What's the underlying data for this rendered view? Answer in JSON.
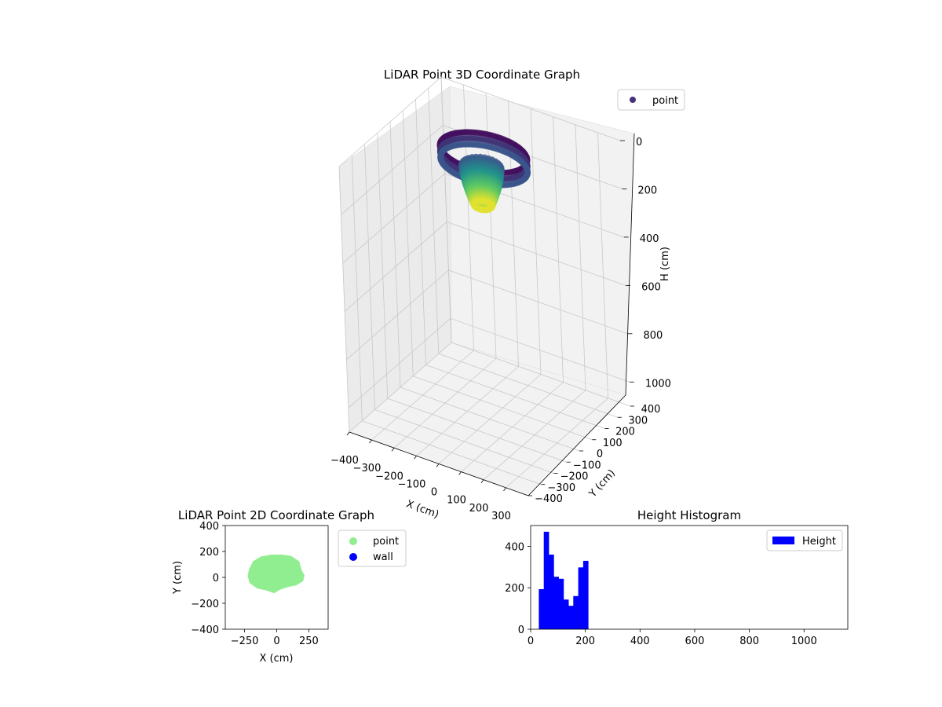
{
  "chart_data": [
    {
      "type": "scatter",
      "projection": "3d",
      "title": "LiDAR Point 3D Coordinate Graph",
      "xlabel": "X (cm)",
      "ylabel": "Y (cm)",
      "zlabel": "H (cm)",
      "xlim": [
        -400,
        400
      ],
      "ylim": [
        -400,
        400
      ],
      "zlim": [
        1100,
        0
      ],
      "x_ticks": [
        -400,
        -300,
        -200,
        -100,
        0,
        100,
        200,
        300
      ],
      "y_ticks": [
        -400,
        -300,
        -200,
        -100,
        0,
        100,
        200,
        300,
        400
      ],
      "z_ticks": [
        0,
        200,
        400,
        600,
        800,
        1000
      ],
      "x_tick_labels": [
        "−400",
        "−300",
        "−200",
        "−100",
        "0",
        "100",
        "200",
        "300"
      ],
      "y_tick_labels": [
        "−400",
        "−300",
        "−200",
        "−100",
        "0",
        "100",
        "200",
        "300",
        "400"
      ],
      "z_tick_labels": [
        "0",
        "200",
        "400",
        "600",
        "800",
        "1000"
      ],
      "grid": true,
      "colormap": "viridis",
      "legend": {
        "position": "top-right",
        "entries": [
          {
            "label": "point",
            "color": "#46337e"
          }
        ]
      },
      "point_cloud": {
        "ring": {
          "h_range": [
            10,
            60
          ],
          "x_range": [
            -180,
            180
          ],
          "y_range": [
            -100,
            160
          ]
        },
        "core": {
          "h_range": [
            60,
            220
          ],
          "x_range": [
            -80,
            80
          ],
          "y_range": [
            -60,
            80
          ]
        }
      }
    },
    {
      "type": "scatter",
      "title": "LiDAR Point 2D Coordinate Graph",
      "xlabel": "X (cm)",
      "ylabel": "Y (cm)",
      "xlim": [
        -400,
        400
      ],
      "ylim": [
        -400,
        400
      ],
      "x_ticks": [
        -250,
        0,
        250
      ],
      "y_ticks": [
        -400,
        -200,
        0,
        200,
        400
      ],
      "x_tick_labels": [
        "−250",
        "0",
        "250"
      ],
      "y_tick_labels": [
        "−400",
        "−200",
        "0",
        "200",
        "400"
      ],
      "grid": false,
      "legend": {
        "position": "outside-right",
        "entries": [
          {
            "label": "point",
            "color": "#90ee90"
          },
          {
            "label": "wall",
            "color": "#0000ff"
          }
        ]
      },
      "series": [
        {
          "name": "point",
          "color": "#90ee90",
          "outline": [
            [
              -210,
              60
            ],
            [
              -180,
              120
            ],
            [
              -120,
              155
            ],
            [
              -40,
              170
            ],
            [
              40,
              170
            ],
            [
              110,
              160
            ],
            [
              170,
              120
            ],
            [
              190,
              50
            ],
            [
              210,
              15
            ],
            [
              200,
              -25
            ],
            [
              150,
              -55
            ],
            [
              80,
              -70
            ],
            [
              20,
              -90
            ],
            [
              -20,
              -115
            ],
            [
              -80,
              -95
            ],
            [
              -150,
              -80
            ],
            [
              -205,
              -40
            ],
            [
              -220,
              10
            ]
          ]
        },
        {
          "name": "wall",
          "color": "#0000ff",
          "points": []
        }
      ]
    },
    {
      "type": "bar",
      "title": "Height Histogram",
      "xlim": [
        0,
        1160
      ],
      "ylim": [
        0,
        500
      ],
      "x_ticks": [
        0,
        200,
        400,
        600,
        800,
        1000
      ],
      "y_ticks": [
        0,
        200,
        400
      ],
      "x_tick_labels": [
        "0",
        "200",
        "400",
        "600",
        "800",
        "1000"
      ],
      "y_tick_labels": [
        "0",
        "200",
        "400"
      ],
      "legend": {
        "position": "top-right",
        "entries": [
          {
            "label": "Height",
            "color": "#0000ff"
          }
        ]
      },
      "bar_color": "#0000ff",
      "bin_edges": [
        30,
        48,
        66,
        84,
        102,
        120,
        138,
        156,
        174,
        192,
        210
      ],
      "values": [
        193,
        470,
        360,
        253,
        243,
        143,
        113,
        160,
        298,
        330
      ]
    }
  ]
}
